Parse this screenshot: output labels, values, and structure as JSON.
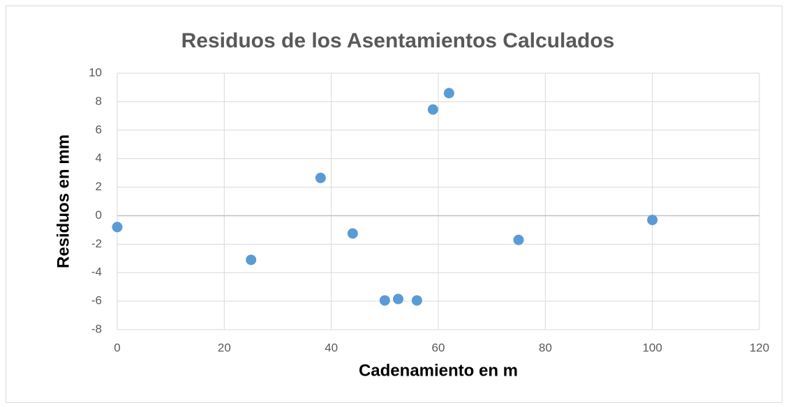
{
  "chart_data": {
    "type": "scatter",
    "title": "Residuos de los Asentamientos Calculados",
    "x_label": "Cadenamiento en m",
    "y_label": "Residuos en mm",
    "series": [
      {
        "name": "Residuos",
        "color": "#5b9bd5",
        "x": [
          0,
          25,
          38,
          44,
          50,
          52.5,
          56,
          59,
          62,
          75,
          100
        ],
        "values": [
          -0.8,
          -3.1,
          2.65,
          -1.25,
          -5.95,
          -5.85,
          -5.95,
          7.45,
          8.6,
          -1.7,
          -0.3
        ]
      }
    ],
    "xlim": [
      0,
      120
    ],
    "xticks": [
      0,
      20,
      40,
      60,
      80,
      100,
      120
    ],
    "ylim": [
      -8,
      10
    ],
    "yticks": [
      -8,
      -6,
      -4,
      -2,
      0,
      2,
      4,
      6,
      8,
      10
    ],
    "grid": true
  }
}
